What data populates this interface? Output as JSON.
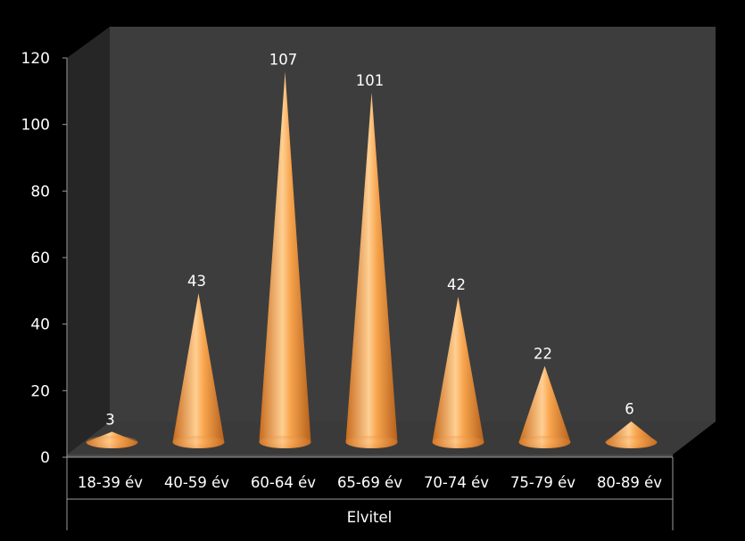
{
  "chart_data": {
    "type": "bar",
    "style": "3d-cone",
    "categories": [
      "18-39 év",
      "40-59 év",
      "60-64 év",
      "65-69 év",
      "70-74 év",
      "75-79 év",
      "80-89 év"
    ],
    "series": [
      {
        "values": [
          3,
          43,
          107,
          101,
          42,
          22,
          6
        ]
      }
    ],
    "data_labels": [
      "3",
      "43",
      "107",
      "101",
      "42",
      "22",
      "6"
    ],
    "group_label": "Elvitel",
    "y_ticks": [
      "0",
      "20",
      "40",
      "60",
      "80",
      "100",
      "120"
    ],
    "ylim": [
      0,
      120
    ],
    "grid": false,
    "colors": {
      "background": "#000000",
      "back_wall": "#3d3d3d",
      "side_wall": "#262626",
      "floor": "#3a3a3a",
      "cone_light": "#ffd9a8",
      "cone_mid": "#f7a54f",
      "cone_dark": "#b8601a",
      "axis": "#9a9a9a",
      "text": "#ffffff"
    }
  }
}
